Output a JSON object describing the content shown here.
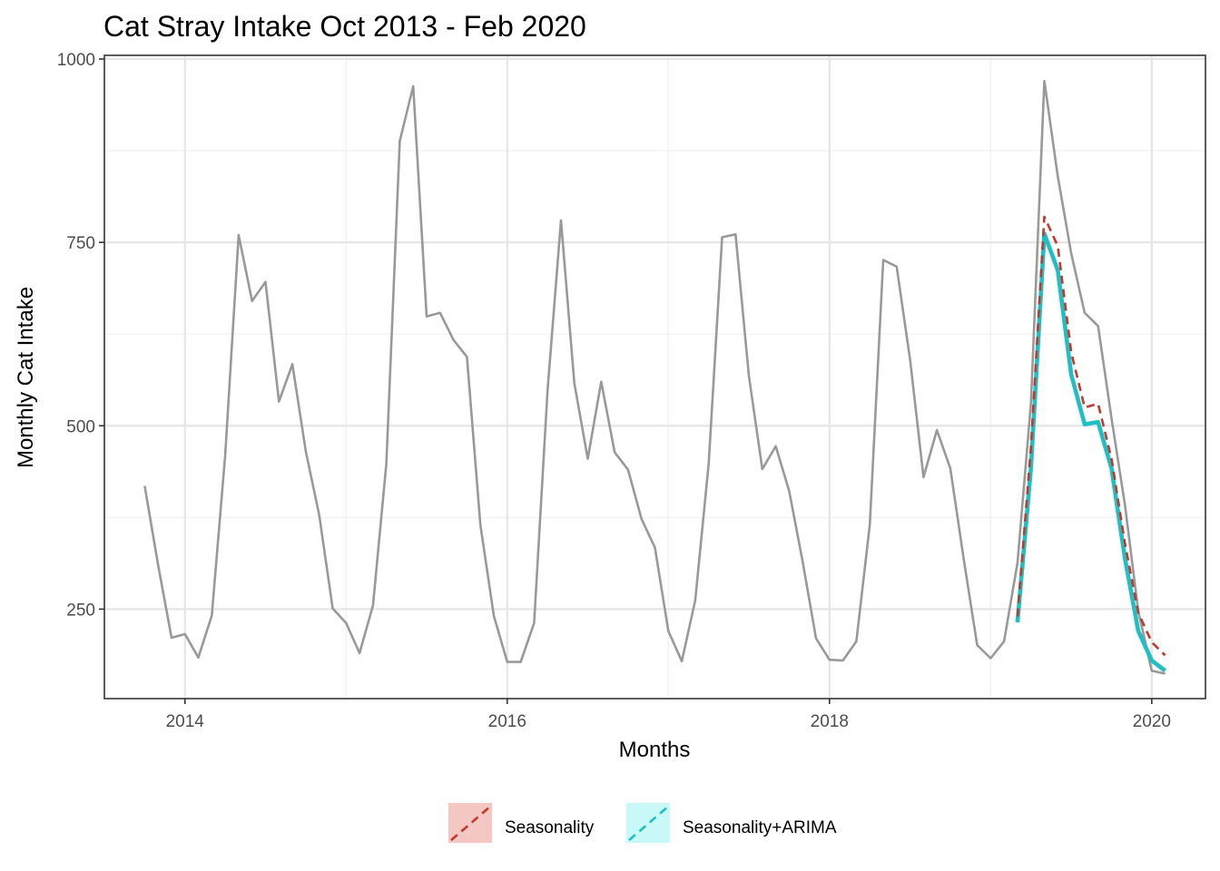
{
  "chart_data": {
    "type": "line",
    "title": "Cat Stray Intake Oct 2013 - Feb 2020",
    "xlabel": "Months",
    "ylabel": "Monthly Cat Intake",
    "xlim": [
      "2013-07",
      "2020-05"
    ],
    "ylim": [
      128,
      1005
    ],
    "x_ticks": [
      {
        "value": "2014-01",
        "label": "2014"
      },
      {
        "value": "2016-01",
        "label": "2016"
      },
      {
        "value": "2018-01",
        "label": "2018"
      },
      {
        "value": "2020-01",
        "label": "2020"
      }
    ],
    "y_ticks": [
      {
        "value": 250,
        "label": "250"
      },
      {
        "value": 500,
        "label": "500"
      },
      {
        "value": 750,
        "label": "750"
      },
      {
        "value": 1000,
        "label": "1000"
      }
    ],
    "grid": true,
    "legend_position": "bottom",
    "observed": {
      "color": "#999999",
      "start": "2013-10",
      "values": [
        418,
        310,
        211,
        216,
        184,
        241,
        460,
        760,
        670,
        696,
        533,
        584,
        465,
        378,
        251,
        231,
        190,
        255,
        448,
        888,
        963,
        649,
        654,
        617,
        594,
        365,
        241,
        178,
        178,
        231,
        548,
        780,
        558,
        455,
        560,
        464,
        440,
        373,
        334,
        220,
        179,
        262,
        448,
        757,
        761,
        568,
        441,
        472,
        411,
        315,
        210,
        181,
        180,
        206,
        365,
        726,
        717,
        590,
        430,
        494,
        442,
        318,
        201,
        183,
        206,
        313,
        530,
        970,
        840,
        735,
        654,
        636,
        510,
        393,
        247,
        166,
        162
      ]
    },
    "series": [
      {
        "name": "Seasonality",
        "color": "#c0392b",
        "dash": true,
        "start": "2019-03",
        "values": [
          240,
          470,
          785,
          745,
          600,
          525,
          530,
          455,
          340,
          245,
          205,
          187
        ]
      },
      {
        "name": "Seasonality+ARIMA",
        "color": "#1fbfc3",
        "dash": false,
        "start": "2019-03",
        "values": [
          232,
          442,
          762,
          712,
          570,
          502,
          505,
          442,
          320,
          220,
          180,
          166
        ]
      }
    ]
  }
}
